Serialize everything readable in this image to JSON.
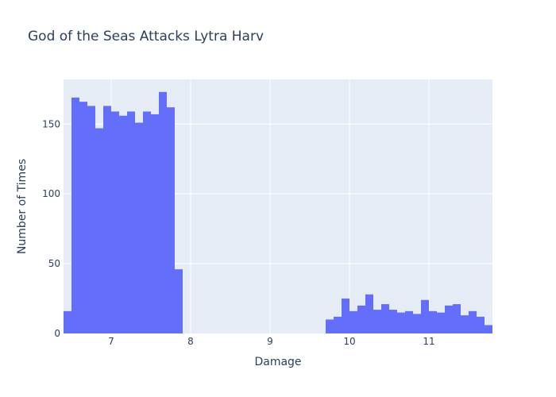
{
  "chart_data": {
    "type": "bar",
    "title": "God of the Seas Attacks Lytra Harv",
    "xlabel": "Damage",
    "ylabel": "Number of Times",
    "xlim": [
      6.4,
      11.8
    ],
    "ylim": [
      0,
      182
    ],
    "bin_width": 0.1,
    "x_ticks": [
      7,
      8,
      9,
      10,
      11
    ],
    "y_ticks": [
      0,
      50,
      100,
      150
    ],
    "grid": true,
    "background_color": "#e5ecf6",
    "bar_color": "#636efa",
    "bins_start": [
      6.4,
      6.5,
      6.6,
      6.7,
      6.8,
      6.9,
      7.0,
      7.1,
      7.2,
      7.3,
      7.4,
      7.5,
      7.6,
      7.7,
      7.8,
      7.9,
      8.0,
      8.1,
      8.2,
      8.3,
      8.4,
      8.5,
      8.6,
      8.7,
      8.8,
      8.9,
      9.0,
      9.1,
      9.2,
      9.3,
      9.4,
      9.5,
      9.6,
      9.7,
      9.8,
      9.9,
      10.0,
      10.1,
      10.2,
      10.3,
      10.4,
      10.5,
      10.6,
      10.7,
      10.8,
      10.9,
      11.0,
      11.1,
      11.2,
      11.3,
      11.4,
      11.5,
      11.6,
      11.7
    ],
    "values": [
      16,
      169,
      166,
      163,
      147,
      163,
      159,
      156,
      159,
      151,
      159,
      157,
      173,
      162,
      46,
      0,
      0,
      0,
      0,
      0,
      0,
      0,
      0,
      0,
      0,
      0,
      0,
      0,
      0,
      0,
      0,
      0,
      0,
      10,
      12,
      25,
      16,
      20,
      28,
      17,
      21,
      17,
      15,
      16,
      14,
      24,
      16,
      15,
      20,
      21,
      13,
      16,
      12,
      6
    ]
  }
}
